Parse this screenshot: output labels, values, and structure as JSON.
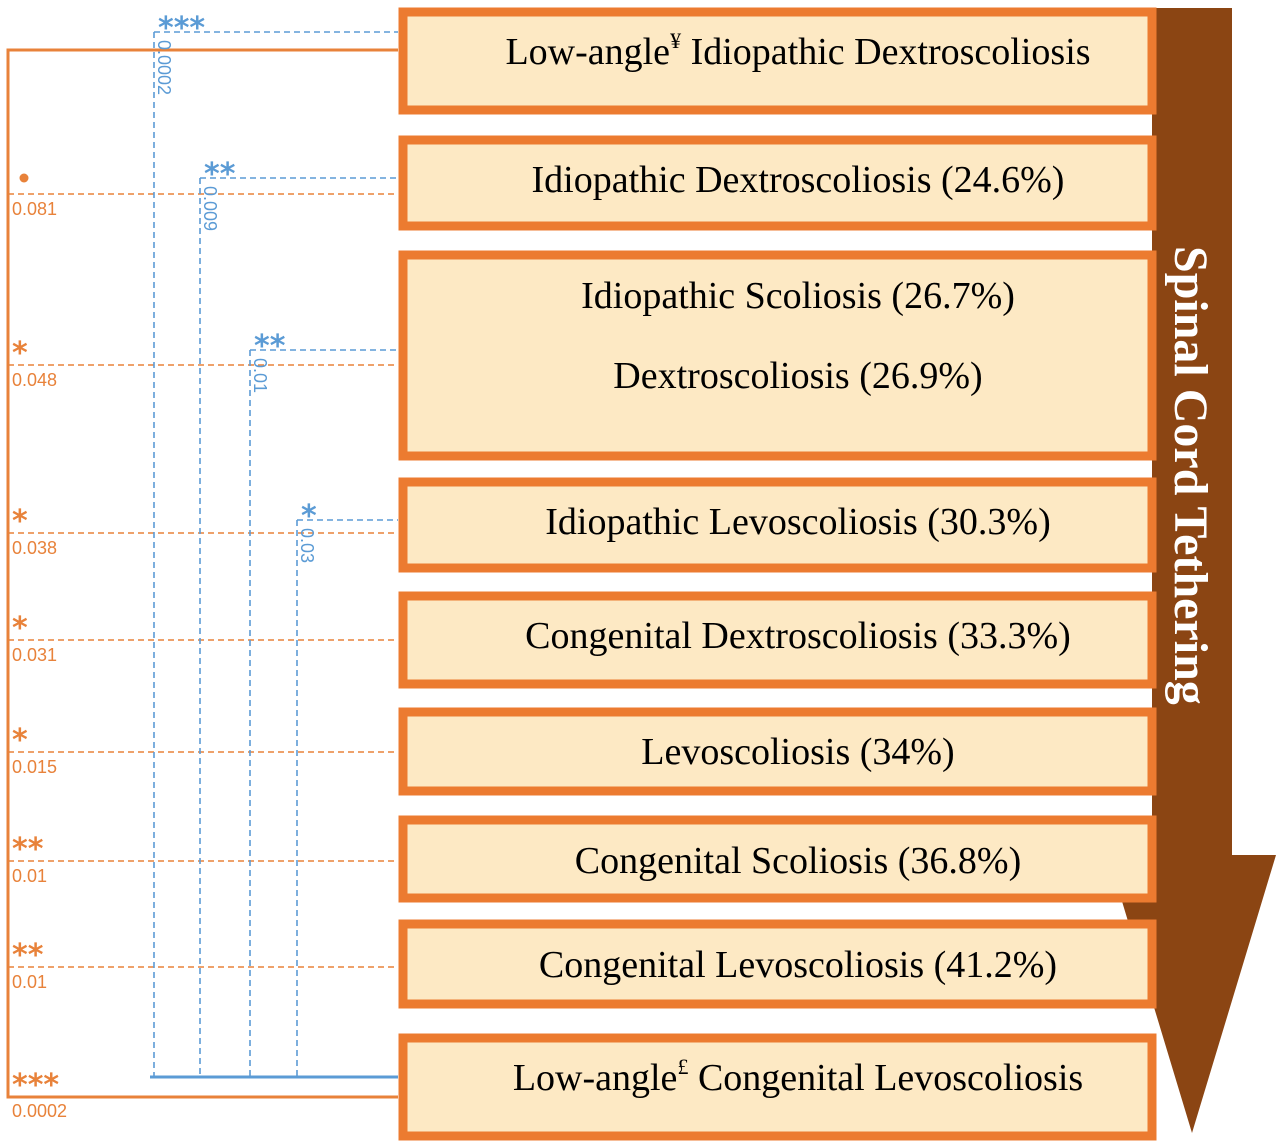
{
  "colors": {
    "orange": "#e8823a",
    "blue": "#5b9bd5",
    "box_fill": "#fde9c4",
    "box_border": "#ec7b30",
    "arrow": "#8b4513",
    "arrow_text": "#ffffff"
  },
  "arrow_label": "Spinal Cord Tethering",
  "boxes": [
    {
      "id": "low-angle-idiopathic-dextroscoliosis",
      "label": "Low-angle",
      "sup": "¥",
      "rest": " Idiopathic Dextroscoliosis"
    },
    {
      "id": "idiopathic-dextroscoliosis",
      "label": "Idiopathic Dextroscoliosis (24.6%)"
    },
    {
      "id": "idiopathic-scoliosis-dextroscoliosis",
      "label": "Idiopathic Scoliosis (26.7%)",
      "label2": "Dextroscoliosis (26.9%)"
    },
    {
      "id": "idiopathic-levoscoliosis",
      "label": "Idiopathic Levoscoliosis (30.3%)"
    },
    {
      "id": "congenital-dextroscoliosis",
      "label": "Congenital Dextroscoliosis (33.3%)"
    },
    {
      "id": "levoscoliosis",
      "label": "Levoscoliosis (34%)"
    },
    {
      "id": "congenital-scoliosis",
      "label": "Congenital Scoliosis (36.8%)"
    },
    {
      "id": "congenital-levoscoliosis",
      "label": "Congenital Levoscoliosis (41.2%)"
    },
    {
      "id": "low-angle-congenital-levoscoliosis",
      "label": "Low-angle",
      "sup": "£",
      "rest": " Congenital Levoscoliosis"
    }
  ],
  "orange_comparisons": [
    {
      "stars": "•",
      "p": "0.081"
    },
    {
      "stars": "*",
      "p": "0.048"
    },
    {
      "stars": "*",
      "p": "0.038"
    },
    {
      "stars": "*",
      "p": "0.031"
    },
    {
      "stars": "*",
      "p": "0.015"
    },
    {
      "stars": "**",
      "p": "0.01"
    },
    {
      "stars": "**",
      "p": "0.01"
    },
    {
      "stars": "***",
      "p": "0.0002"
    }
  ],
  "blue_comparisons": [
    {
      "stars": "***",
      "p": "0.0002"
    },
    {
      "stars": "**",
      "p": "0.009"
    },
    {
      "stars": "**",
      "p": "0.01"
    },
    {
      "stars": "*",
      "p": "0.03"
    }
  ]
}
